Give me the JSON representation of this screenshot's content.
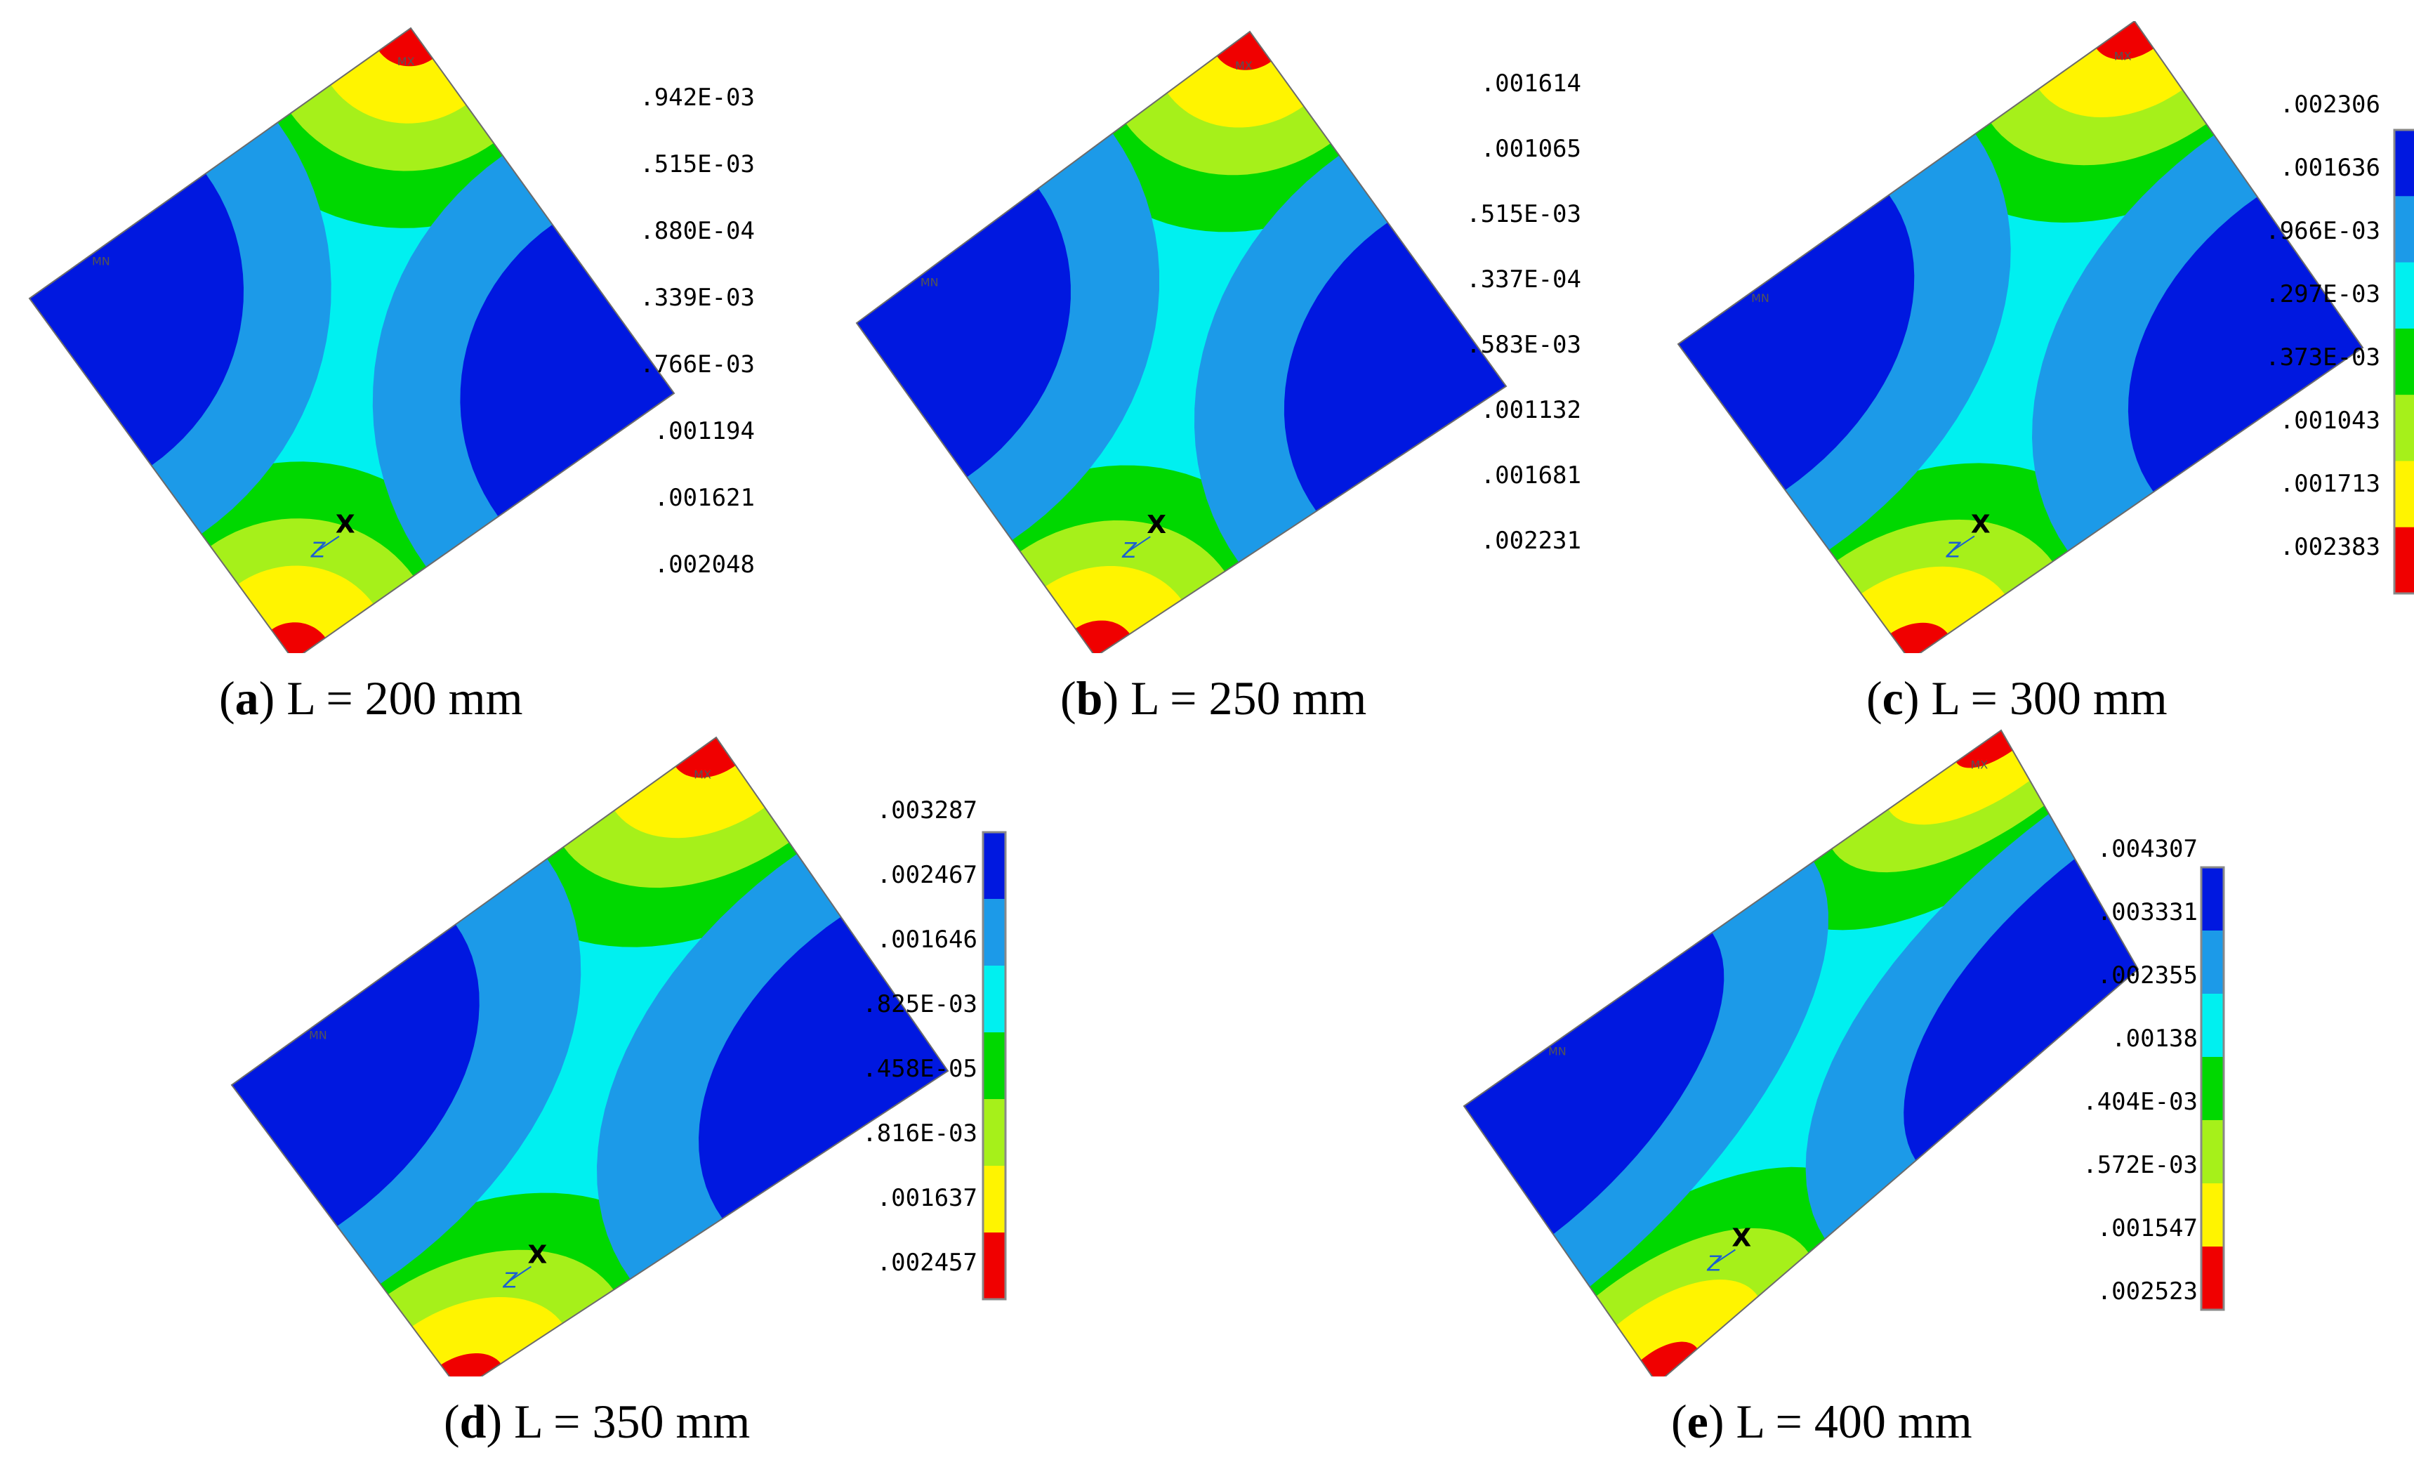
{
  "colors": {
    "band1": "#0018e0",
    "band2": "#1c9ae8",
    "band3": "#00f0f0",
    "band4": "#00d800",
    "band5": "#a6f01a",
    "band6": "#fff400",
    "band7": "#f00000"
  },
  "marker_labels": {
    "max": "MX",
    "min": "MN",
    "x_axis": "X",
    "z_axis": "Z"
  },
  "panels": [
    {
      "letter": "a",
      "caption": "L = 200 mm",
      "legend": [
        ".942E-03",
        ".515E-03",
        ".880E-04",
        ".339E-03",
        ".766E-03",
        ".001194",
        ".001621",
        ".002048"
      ]
    },
    {
      "letter": "b",
      "caption": "L = 250 mm",
      "legend": [
        ".001614",
        ".001065",
        ".515E-03",
        ".337E-04",
        ".583E-03",
        ".001132",
        ".001681",
        ".002231"
      ]
    },
    {
      "letter": "c",
      "caption": "L = 300 mm",
      "legend": [
        ".002306",
        ".001636",
        ".966E-03",
        ".297E-03",
        ".373E-03",
        ".001043",
        ".001713",
        ".002383"
      ]
    },
    {
      "letter": "d",
      "caption": "L = 350 mm",
      "legend": [
        ".003287",
        ".002467",
        ".001646",
        ".825E-03",
        ".458E-05",
        ".816E-03",
        ".001637",
        ".002457"
      ]
    },
    {
      "letter": "e",
      "caption": "L = 400 mm",
      "legend": [
        ".004307",
        ".003331",
        ".002355",
        ".00138",
        ".404E-03",
        ".572E-03",
        ".001547",
        ".002523"
      ]
    }
  ]
}
